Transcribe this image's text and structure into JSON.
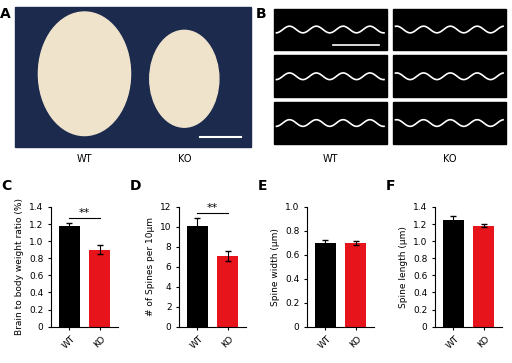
{
  "image_panels": [
    {
      "label": "A",
      "captions": [
        "WT",
        "KO"
      ]
    },
    {
      "label": "B",
      "captions": [
        "WT",
        "KO"
      ]
    }
  ],
  "chart_data": [
    {
      "type": "bar",
      "title": "C",
      "categories": [
        "WT",
        "KO"
      ],
      "values": [
        1.18,
        0.9
      ],
      "errors": [
        0.03,
        0.05
      ],
      "colors": [
        "#000000",
        "#e8141b"
      ],
      "y_label": "Brain to body weight ratio (%)",
      "ylim": [
        0,
        1.4
      ],
      "yticks": [
        0,
        0.2,
        0.4,
        0.6,
        0.8,
        1.0,
        1.2,
        1.4
      ],
      "annotations": [
        "**"
      ]
    },
    {
      "type": "bar",
      "title": "D",
      "categories": [
        "WT",
        "KO"
      ],
      "values": [
        10.1,
        7.1
      ],
      "errors": [
        0.8,
        0.5
      ],
      "colors": [
        "#000000",
        "#e8141b"
      ],
      "y_label": "# of Spines per 10μm",
      "ylim": [
        0,
        12
      ],
      "yticks": [
        0,
        2,
        4,
        6,
        8,
        10,
        12
      ],
      "annotations": [
        "**"
      ]
    },
    {
      "type": "bar",
      "title": "E",
      "categories": [
        "WT",
        "KO"
      ],
      "values": [
        0.7,
        0.7
      ],
      "errors": [
        0.02,
        0.015
      ],
      "colors": [
        "#000000",
        "#e8141b"
      ],
      "y_label": "Spine width (μm)",
      "ylim": [
        0,
        1.0
      ],
      "yticks": [
        0,
        0.2,
        0.4,
        0.6,
        0.8,
        1.0
      ]
    },
    {
      "type": "bar",
      "title": "F",
      "categories": [
        "WT",
        "KO"
      ],
      "values": [
        1.25,
        1.18
      ],
      "errors": [
        0.04,
        0.02
      ],
      "colors": [
        "#000000",
        "#e8141b"
      ],
      "y_label": "Spine length (μm)",
      "ylim": [
        0,
        1.4
      ],
      "yticks": [
        0,
        0.2,
        0.4,
        0.6,
        0.8,
        1.0,
        1.2,
        1.4
      ]
    }
  ]
}
